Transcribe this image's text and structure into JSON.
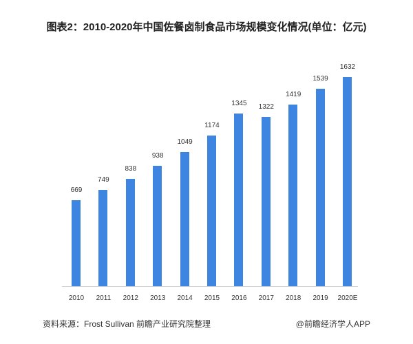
{
  "title": "图表2：2010-2020年中国佐餐卤制食品市场规模变化情况(单位：亿元)",
  "source": "资料来源：Frost Sullivan 前瞻产业研究院整理",
  "brand": "@前瞻经济学人APP",
  "bar_color": "#3d85e0",
  "chart_data": {
    "type": "bar",
    "title": "图表2：2010-2020年中国佐餐卤制食品市场规模变化情况(单位：亿元)",
    "categories": [
      "2010",
      "2011",
      "2012",
      "2013",
      "2014",
      "2015",
      "2016",
      "2017",
      "2018",
      "2019",
      "2020E"
    ],
    "values": [
      669,
      749,
      838,
      938,
      1049,
      1174,
      1345,
      1322,
      1419,
      1539,
      1632
    ],
    "xlabel": "",
    "ylabel": "亿元",
    "grid": false,
    "legend": null
  }
}
